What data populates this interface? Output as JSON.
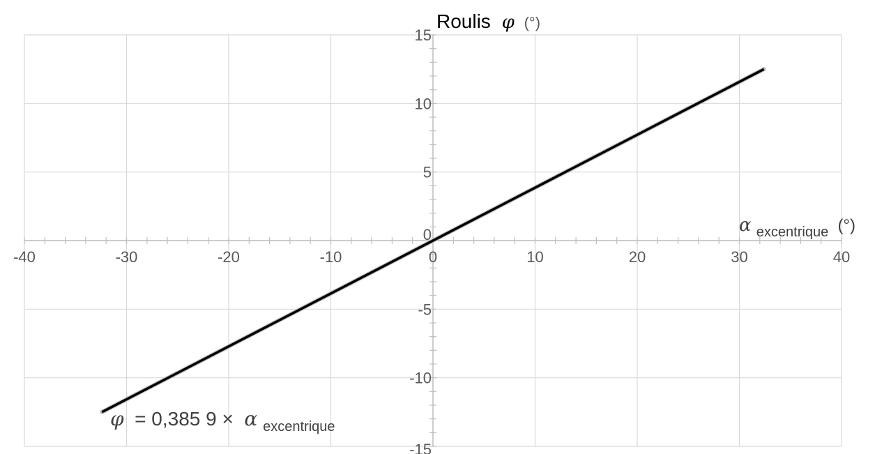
{
  "chart_data": {
    "type": "line",
    "title": {
      "main": "Roulis",
      "symbol": "φ",
      "unit": "(°)"
    },
    "xlabel": {
      "symbol": "α",
      "subscript": "excentrique",
      "unit": "(°)"
    },
    "ylabel": "",
    "xlim": [
      -40,
      40
    ],
    "ylim": [
      -15,
      15
    ],
    "x_major_step": 10,
    "y_major_step": 5,
    "x_minor_step": 2,
    "y_minor_step": 1,
    "grid": true,
    "x_tick_labels": [
      "-40",
      "-30",
      "-20",
      "-10",
      "0",
      "10",
      "20",
      "30",
      "40"
    ],
    "y_tick_labels": [
      "-15",
      "-10",
      "-5",
      "0",
      "5",
      "10",
      "15"
    ],
    "series": [
      {
        "color": "#000000",
        "x": [
          -32.4,
          32.4
        ],
        "y": [
          -12.5,
          12.5
        ]
      }
    ],
    "annotation": {
      "lhs_symbol": "φ",
      "equation_text": " = 0,385 9 × ",
      "rhs_symbol": "α",
      "rhs_subscript": "excentrique"
    },
    "colors": {
      "grid": "#d9d9d9",
      "axis": "#bfbfbf",
      "line": "#000000",
      "text": "#595959"
    }
  }
}
